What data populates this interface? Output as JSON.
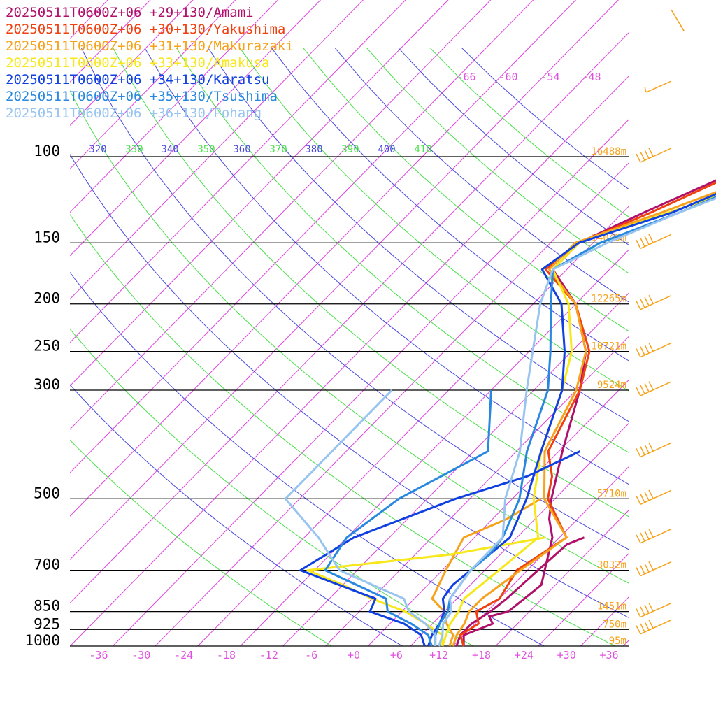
{
  "chart_data": {
    "type": "line",
    "title": "",
    "xlabel": "",
    "ylabel": "",
    "y_scale": "log",
    "ylim": [
      1000,
      100
    ],
    "xlim": [
      -40,
      40
    ],
    "x_ticks": [
      -36,
      -30,
      -24,
      -18,
      -12,
      -6,
      0,
      6,
      12,
      18,
      24,
      30,
      36
    ],
    "x_tick_labels": [
      "-36",
      "-30",
      "-24",
      "-18",
      "-12",
      "-6",
      "+0",
      "+6",
      "+12",
      "+18",
      "+24",
      "+30",
      "+36"
    ],
    "pressure_levels": [
      {
        "p": 100,
        "label": "100",
        "height": "16488m"
      },
      {
        "p": 150,
        "label": "150",
        "height": "14049m"
      },
      {
        "p": 200,
        "label": "200",
        "height": "12265m"
      },
      {
        "p": 250,
        "label": "250",
        "height": "10721m"
      },
      {
        "p": 300,
        "label": "300",
        "height": "9524m"
      },
      {
        "p": 500,
        "label": "500",
        "height": "5710m"
      },
      {
        "p": 700,
        "label": "700",
        "height": "3032m"
      },
      {
        "p": 850,
        "label": "850",
        "height": "1451m"
      },
      {
        "p": 925,
        "label": "925",
        "height": "750m"
      },
      {
        "p": 1000,
        "label": "1000",
        "height": "95m"
      }
    ],
    "theta_labels": [
      "320",
      "330",
      "340",
      "350",
      "360",
      "370",
      "380",
      "390",
      "400",
      "410"
    ],
    "mixing_ratio_labels": [
      "-66",
      "-60",
      "-54",
      "-48"
    ],
    "legend_placement": "top-left",
    "series": [
      {
        "name": "20250511T0600Z+06 +29+130/Amami",
        "color": "#b0106a",
        "temperature": [
          [
            1000,
            15.5
          ],
          [
            950,
            14
          ],
          [
            900,
            16.5
          ],
          [
            870,
            15
          ],
          [
            850,
            17
          ],
          [
            800,
            17.5
          ],
          [
            750,
            18
          ],
          [
            600,
            13
          ],
          [
            550,
            10
          ],
          [
            500,
            7.5
          ],
          [
            400,
            2.5
          ],
          [
            300,
            -3.5
          ],
          [
            250,
            -8
          ],
          [
            200,
            -16
          ],
          [
            170,
            -24
          ],
          [
            150,
            -24
          ],
          [
            130,
            -19
          ],
          [
            100,
            -9
          ],
          [
            80,
            -3
          ],
          [
            60,
            3
          ],
          [
            40,
            14
          ],
          [
            20,
            30
          ]
        ],
        "dewpoint": [
          [
            1000,
            14.5
          ],
          [
            950,
            13.5
          ],
          [
            900,
            13.5
          ],
          [
            850,
            14.5
          ],
          [
            800,
            15
          ],
          [
            700,
            15.5
          ],
          [
            620,
            16
          ],
          [
            600,
            17.5
          ]
        ]
      },
      {
        "name": "20250511T0600Z+06 +30+130/Yakushima",
        "color": "#f04010",
        "temperature": [
          [
            1000,
            15.5
          ],
          [
            950,
            13.5
          ],
          [
            900,
            14.5
          ],
          [
            850,
            12.5
          ],
          [
            800,
            14
          ],
          [
            700,
            12.5
          ],
          [
            600,
            15
          ],
          [
            500,
            7
          ],
          [
            450,
            4.5
          ],
          [
            400,
            0.5
          ],
          [
            300,
            -3.5
          ],
          [
            250,
            -7.5
          ],
          [
            200,
            -16
          ],
          [
            170,
            -25
          ],
          [
            150,
            -24
          ],
          [
            130,
            -18
          ],
          [
            110,
            -12
          ],
          [
            100,
            -11
          ],
          [
            80,
            -2
          ],
          [
            60,
            6
          ],
          [
            40,
            18
          ],
          [
            20,
            32
          ]
        ],
        "dewpoint": []
      },
      {
        "name": "20250511T0600Z+06 +31+130/Makurazaki",
        "color": "#f7a21b",
        "temperature": [
          [
            1000,
            14
          ],
          [
            950,
            13
          ],
          [
            900,
            12.5
          ],
          [
            850,
            11.5
          ],
          [
            800,
            11.5
          ],
          [
            700,
            13
          ],
          [
            650,
            14
          ],
          [
            600,
            15
          ],
          [
            500,
            6.5
          ],
          [
            400,
            0
          ],
          [
            300,
            -4
          ],
          [
            250,
            -8
          ],
          [
            200,
            -16
          ],
          [
            170,
            -24.5
          ],
          [
            150,
            -24.5
          ],
          [
            130,
            -16.5
          ],
          [
            110,
            -8
          ],
          [
            100,
            -8
          ],
          [
            80,
            1
          ],
          [
            60,
            7
          ],
          [
            40,
            18
          ],
          [
            20,
            32
          ]
        ],
        "dewpoint": [
          [
            1000,
            13.5
          ],
          [
            950,
            12.5
          ],
          [
            900,
            10
          ],
          [
            850,
            8
          ],
          [
            800,
            4.5
          ],
          [
            700,
            2.5
          ],
          [
            600,
            0.5
          ],
          [
            550,
            4
          ],
          [
            500,
            6
          ]
        ]
      },
      {
        "name": "20250511T0600Z+06 +33+130/Amakusa",
        "color": "#f7e81b",
        "temperature": [
          [
            1000,
            12.5
          ],
          [
            950,
            11.5
          ],
          [
            900,
            10.5
          ],
          [
            850,
            10
          ],
          [
            800,
            9
          ],
          [
            700,
            10
          ],
          [
            600,
            11
          ],
          [
            500,
            5
          ],
          [
            400,
            -0.5
          ],
          [
            300,
            -6
          ],
          [
            250,
            -10
          ],
          [
            200,
            -17
          ],
          [
            170,
            -24
          ],
          [
            150,
            -24
          ],
          [
            130,
            -15.5
          ],
          [
            110,
            -5.5
          ],
          [
            100,
            -3
          ],
          [
            80,
            3
          ],
          [
            60,
            9
          ],
          [
            40,
            20
          ],
          [
            20,
            33
          ]
        ],
        "dewpoint": [
          [
            1000,
            12.5
          ],
          [
            950,
            11
          ],
          [
            900,
            7
          ],
          [
            850,
            2.5
          ],
          [
            800,
            -4
          ],
          [
            750,
            -10
          ],
          [
            700,
            -17
          ],
          [
            650,
            1
          ],
          [
            600,
            12
          ]
        ]
      },
      {
        "name": "20250511T0600Z+06 +34+130/Karatsu",
        "color": "#1040e0",
        "temperature": [
          [
            1000,
            10.5
          ],
          [
            950,
            9.5
          ],
          [
            900,
            9
          ],
          [
            850,
            8
          ],
          [
            800,
            6
          ],
          [
            750,
            5.5
          ],
          [
            700,
            6
          ],
          [
            600,
            7
          ],
          [
            500,
            4
          ],
          [
            400,
            -0.5
          ],
          [
            300,
            -6
          ],
          [
            250,
            -11
          ],
          [
            200,
            -18
          ],
          [
            170,
            -25.5
          ],
          [
            150,
            -24
          ],
          [
            130,
            -15
          ],
          [
            110,
            -8
          ],
          [
            100,
            -4
          ],
          [
            90,
            0
          ],
          [
            80,
            4
          ],
          [
            60,
            10
          ],
          [
            40,
            22
          ],
          [
            20,
            34
          ]
        ],
        "dewpoint": [
          [
            1000,
            10
          ],
          [
            950,
            8
          ],
          [
            900,
            4
          ],
          [
            850,
            -2.5
          ],
          [
            800,
            -3.5
          ],
          [
            700,
            -18
          ],
          [
            600,
            -15
          ],
          [
            500,
            -6
          ],
          [
            450,
            1
          ],
          [
            400,
            5
          ]
        ]
      },
      {
        "name": "20250511T0600Z+06 +35+130/Tsushima",
        "color": "#2888e0",
        "temperature": [
          [
            1000,
            11.5
          ],
          [
            950,
            10
          ],
          [
            900,
            9
          ],
          [
            850,
            8.5
          ],
          [
            800,
            7
          ],
          [
            700,
            6
          ],
          [
            650,
            6.5
          ],
          [
            600,
            6
          ],
          [
            500,
            3
          ],
          [
            400,
            -2.5
          ],
          [
            300,
            -8
          ],
          [
            250,
            -13
          ],
          [
            200,
            -19.5
          ],
          [
            170,
            -24
          ],
          [
            150,
            -21
          ],
          [
            130,
            -14
          ],
          [
            110,
            -7
          ],
          [
            100,
            -5
          ],
          [
            90,
            0
          ],
          [
            80,
            6
          ],
          [
            60,
            13
          ],
          [
            40,
            24
          ],
          [
            20,
            36
          ]
        ],
        "dewpoint": [
          [
            1000,
            11
          ],
          [
            950,
            9
          ],
          [
            900,
            5
          ],
          [
            850,
            0
          ],
          [
            800,
            -2
          ],
          [
            700,
            -14.5
          ],
          [
            600,
            -16
          ],
          [
            500,
            -14
          ],
          [
            400,
            -8
          ],
          [
            300,
            -16
          ]
        ]
      },
      {
        "name": "20250511T0600Z+06 +36+130/Pohang",
        "color": "#98c4f0",
        "temperature": [
          [
            1000,
            12
          ],
          [
            950,
            11
          ],
          [
            900,
            9.5
          ],
          [
            850,
            9
          ],
          [
            800,
            7
          ],
          [
            700,
            6
          ],
          [
            600,
            6
          ],
          [
            500,
            1
          ],
          [
            400,
            -3.5
          ],
          [
            300,
            -11
          ],
          [
            250,
            -15.5
          ],
          [
            200,
            -21
          ],
          [
            170,
            -24
          ],
          [
            150,
            -20
          ],
          [
            130,
            -14
          ],
          [
            110,
            -6
          ],
          [
            100,
            -3
          ],
          [
            90,
            1
          ],
          [
            80,
            6
          ],
          [
            60,
            15
          ],
          [
            40,
            28
          ],
          [
            20,
            40
          ]
        ],
        "dewpoint": [
          [
            1000,
            11.5
          ],
          [
            950,
            10
          ],
          [
            900,
            7
          ],
          [
            850,
            3
          ],
          [
            800,
            0.5
          ],
          [
            700,
            -12.5
          ],
          [
            600,
            -20
          ],
          [
            500,
            -30
          ],
          [
            300,
            -30
          ]
        ]
      }
    ]
  }
}
